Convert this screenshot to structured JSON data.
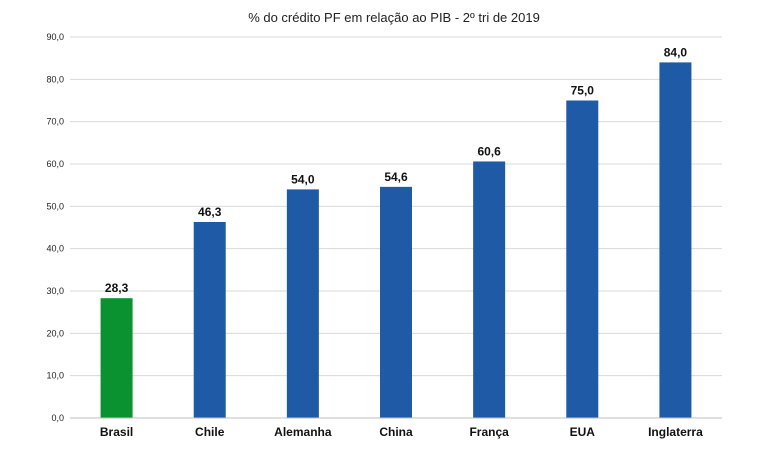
{
  "chart_data": {
    "type": "bar",
    "title": "% do crédito PF em relação ao PIB - 2º tri de 2019",
    "xlabel": "",
    "ylabel": "",
    "ylim": [
      0,
      90
    ],
    "yticks": [
      "0,0",
      "10,0",
      "20,0",
      "30,0",
      "40,0",
      "50,0",
      "60,0",
      "70,0",
      "80,0",
      "90,0"
    ],
    "grid": true,
    "legend": "none",
    "categories": [
      "Brasil",
      "Chile",
      "Alemanha",
      "China",
      "França",
      "EUA",
      "Inglaterra"
    ],
    "values": [
      28.3,
      46.3,
      54.0,
      54.6,
      60.6,
      75.0,
      84.0
    ],
    "value_labels": [
      "28,3",
      "46,3",
      "54,0",
      "54,6",
      "60,6",
      "75,0",
      "84,0"
    ],
    "colors": {
      "highlight": "#0a9130",
      "default": "#1f5aa6"
    },
    "highlight_index": 0
  }
}
